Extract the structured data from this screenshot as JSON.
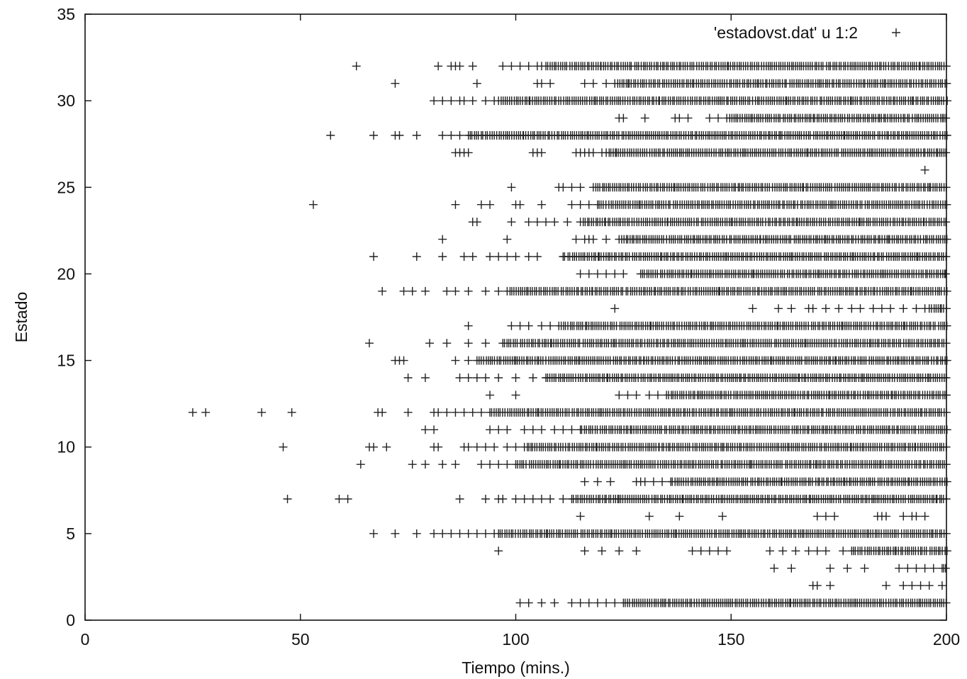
{
  "chart_data": {
    "type": "scatter",
    "title": "",
    "xlabel": "Tiempo (mins.)",
    "ylabel": "Estado",
    "xlim": [
      0,
      200
    ],
    "ylim": [
      0,
      35
    ],
    "xticks": [
      0,
      50,
      100,
      150,
      200
    ],
    "yticks": [
      0,
      5,
      10,
      15,
      20,
      25,
      30,
      35
    ],
    "grid": false,
    "legend_position": "top-right",
    "marker": "plus",
    "series": [
      {
        "name": "'estadovst.dat' u 1:2",
        "marker": "+",
        "rows": [
          {
            "y": 32,
            "x_start": 63,
            "x_end": 200,
            "isolated_x": [
              63,
              82,
              85,
              86,
              87,
              90,
              97,
              99,
              101,
              103,
              105,
              106,
              107
            ]
          },
          {
            "y": 31,
            "x_start": 72,
            "x_end": 200,
            "isolated_x": [
              72,
              91,
              105,
              106,
              108,
              116,
              118,
              121,
              123
            ]
          },
          {
            "y": 30,
            "x_start": 81,
            "x_end": 200,
            "isolated_x": [
              81,
              83,
              85,
              87,
              88,
              90,
              93,
              95,
              96
            ]
          },
          {
            "y": 29,
            "x_start": 124,
            "x_end": 200,
            "isolated_x": [
              124,
              125,
              130,
              137,
              138,
              140,
              145,
              147,
              149
            ]
          },
          {
            "y": 28,
            "x_start": 57,
            "x_end": 200,
            "isolated_x": [
              57,
              67,
              72,
              73,
              77,
              83,
              85,
              87,
              89
            ]
          },
          {
            "y": 27,
            "x_start": 86,
            "x_end": 200,
            "isolated_x": [
              86,
              87,
              88,
              89,
              104,
              105,
              106,
              114,
              115,
              116,
              117,
              118,
              120,
              121
            ]
          },
          {
            "y": 26,
            "x_start": 195,
            "x_end": 195,
            "isolated_x": [
              195
            ]
          },
          {
            "y": 25,
            "x_start": 99,
            "x_end": 200,
            "isolated_x": [
              99,
              110,
              111,
              113,
              115,
              118
            ]
          },
          {
            "y": 24,
            "x_start": 53,
            "x_end": 200,
            "isolated_x": [
              53,
              86,
              92,
              94,
              100,
              101,
              106,
              113,
              115,
              117,
              119
            ]
          },
          {
            "y": 23,
            "x_start": 90,
            "x_end": 200,
            "isolated_x": [
              90,
              91,
              99,
              103,
              105,
              107,
              109,
              112,
              115
            ]
          },
          {
            "y": 22,
            "x_start": 83,
            "x_end": 200,
            "isolated_x": [
              83,
              98,
              114,
              116,
              117,
              118,
              121,
              124
            ]
          },
          {
            "y": 21,
            "x_start": 67,
            "x_end": 200,
            "isolated_x": [
              67,
              77,
              83,
              88,
              90,
              94,
              96,
              98,
              100,
              103,
              105,
              111
            ]
          },
          {
            "y": 20,
            "x_start": 115,
            "x_end": 200,
            "isolated_x": [
              115,
              117,
              119,
              121,
              123,
              125,
              129
            ]
          },
          {
            "y": 19,
            "x_start": 69,
            "x_end": 200,
            "isolated_x": [
              69,
              74,
              76,
              79,
              84,
              86,
              89,
              93,
              96,
              98
            ]
          },
          {
            "y": 18,
            "x_start": 123,
            "x_end": 200,
            "isolated_x": [
              123,
              155,
              161,
              164,
              168,
              169,
              172,
              175,
              178,
              180,
              183,
              185,
              187,
              190,
              193,
              195,
              196
            ]
          },
          {
            "y": 17,
            "x_start": 89,
            "x_end": 200,
            "isolated_x": [
              89,
              99,
              101,
              103,
              106,
              108,
              110
            ]
          },
          {
            "y": 16,
            "x_start": 66,
            "x_end": 200,
            "isolated_x": [
              66,
              80,
              84,
              89,
              93,
              97
            ]
          },
          {
            "y": 15,
            "x_start": 72,
            "x_end": 200,
            "isolated_x": [
              72,
              73,
              74,
              86,
              89,
              91
            ]
          },
          {
            "y": 14,
            "x_start": 75,
            "x_end": 200,
            "isolated_x": [
              75,
              79,
              87,
              89,
              91,
              93,
              96,
              100,
              104,
              107
            ]
          },
          {
            "y": 13,
            "x_start": 94,
            "x_end": 200,
            "isolated_x": [
              94,
              100,
              124,
              126,
              128,
              131,
              133,
              135
            ]
          },
          {
            "y": 12,
            "x_start": 25,
            "x_end": 200,
            "isolated_x": [
              25,
              28,
              41,
              48,
              68,
              69,
              75,
              81,
              82,
              84,
              86,
              88,
              90,
              92,
              94
            ]
          },
          {
            "y": 11,
            "x_start": 79,
            "x_end": 200,
            "isolated_x": [
              79,
              81,
              94,
              96,
              98,
              102,
              104,
              106,
              109,
              111,
              113,
              115
            ]
          },
          {
            "y": 10,
            "x_start": 46,
            "x_end": 200,
            "isolated_x": [
              46,
              66,
              67,
              70,
              81,
              82,
              88,
              89,
              91,
              93,
              95,
              98,
              100,
              102
            ]
          },
          {
            "y": 9,
            "x_start": 64,
            "x_end": 200,
            "isolated_x": [
              64,
              76,
              79,
              83,
              86,
              92,
              94,
              96,
              98,
              100
            ]
          },
          {
            "y": 8,
            "x_start": 116,
            "x_end": 200,
            "isolated_x": [
              116,
              119,
              122,
              128,
              129,
              130,
              132,
              134,
              136
            ]
          },
          {
            "y": 7,
            "x_start": 47,
            "x_end": 200,
            "isolated_x": [
              47,
              59,
              61,
              87,
              93,
              96,
              97,
              100,
              102,
              104,
              106,
              108,
              111,
              113
            ]
          },
          {
            "y": 6,
            "x_start": 115,
            "x_end": 195,
            "isolated_x": [
              115,
              131,
              138,
              148,
              170,
              172,
              174,
              184,
              185,
              186,
              190,
              192,
              193,
              195
            ]
          },
          {
            "y": 5,
            "x_start": 67,
            "x_end": 200,
            "isolated_x": [
              67,
              72,
              77,
              81,
              83,
              85,
              87,
              89,
              91,
              93,
              95,
              96
            ]
          },
          {
            "y": 4,
            "x_start": 96,
            "x_end": 200,
            "isolated_x": [
              96,
              116,
              120,
              124,
              128,
              141,
              143,
              145,
              147,
              149,
              159,
              162,
              165,
              168,
              170,
              172,
              176,
              178
            ]
          },
          {
            "y": 3,
            "x_start": 160,
            "x_end": 200,
            "isolated_x": [
              160,
              164,
              173,
              177,
              181,
              189,
              191,
              193,
              195,
              197,
              199
            ]
          },
          {
            "y": 2,
            "x_start": 169,
            "x_end": 199,
            "isolated_x": [
              169,
              170,
              173,
              186,
              190,
              192,
              194,
              196,
              199
            ]
          },
          {
            "y": 1,
            "x_start": 101,
            "x_end": 200,
            "isolated_x": [
              101,
              103,
              106,
              109,
              113,
              115,
              117,
              119,
              121,
              123,
              125
            ]
          }
        ]
      }
    ]
  }
}
